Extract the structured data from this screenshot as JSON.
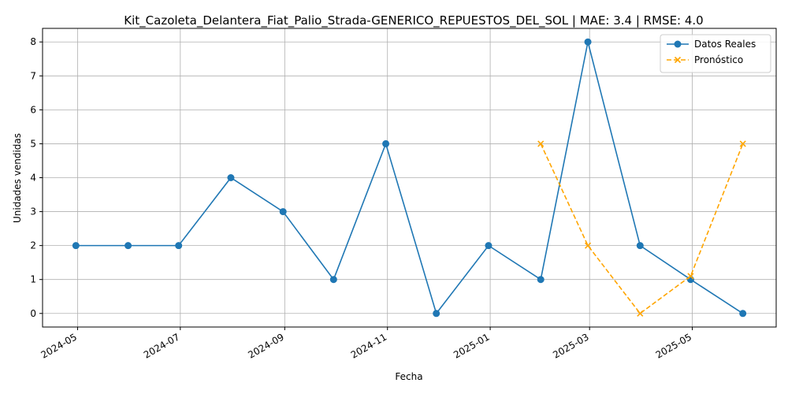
{
  "chart_data": {
    "type": "line",
    "title": "Kit_Cazoleta_Delantera_Fiat_Palio_Strada-GENERICO_REPUESTOS_DEL_SOL | MAE: 3.4 | RMSE: 4.0",
    "xlabel": "Fecha",
    "ylabel": "Unidades vendidas",
    "x_tick_labels": [
      "2024-05",
      "2024-07",
      "2024-09",
      "2024-11",
      "2025-01",
      "2025-03",
      "2025-05"
    ],
    "y_ticks": [
      0,
      1,
      2,
      3,
      4,
      5,
      6,
      7,
      8
    ],
    "grid": true,
    "legend_position": "top-right",
    "series": [
      {
        "name": "Datos Reales",
        "color": "#1f77b4",
        "marker": "circle",
        "line_style": "solid",
        "x": [
          "2024-04-30",
          "2024-05-31",
          "2024-06-30",
          "2024-07-31",
          "2024-08-31",
          "2024-09-30",
          "2024-10-31",
          "2024-11-30",
          "2024-12-31",
          "2025-01-31",
          "2025-02-28",
          "2025-03-31",
          "2025-04-30",
          "2025-05-31"
        ],
        "values": [
          2,
          2,
          2,
          4,
          3,
          1,
          5,
          0,
          2,
          1,
          8,
          2,
          1,
          0
        ]
      },
      {
        "name": "Pronóstico",
        "color": "#ffa500",
        "marker": "x",
        "line_style": "dashed",
        "x": [
          "2025-01-31",
          "2025-02-28",
          "2025-03-31",
          "2025-04-30",
          "2025-05-31"
        ],
        "values": [
          5,
          2,
          0,
          1.1,
          5
        ]
      }
    ]
  }
}
